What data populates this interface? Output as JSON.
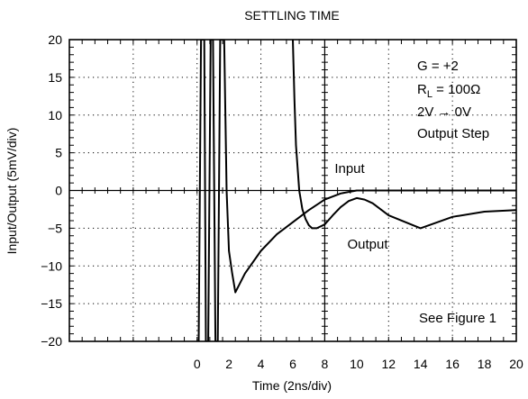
{
  "chart_data": {
    "type": "line",
    "title": "SETTLING TIME",
    "xlabel": "Time (2ns/div)",
    "ylabel": "Input/Output (5mV/div)",
    "xlim": [
      -8,
      20
    ],
    "ylim": [
      -20,
      20
    ],
    "grid": true,
    "x_ticks": [
      {
        "value": 0,
        "label": "0"
      },
      {
        "value": 2,
        "label": "2"
      },
      {
        "value": 4,
        "label": "4"
      },
      {
        "value": 6,
        "label": "6"
      },
      {
        "value": 8,
        "label": "8"
      },
      {
        "value": 10,
        "label": "10"
      },
      {
        "value": 12,
        "label": "12"
      },
      {
        "value": 14,
        "label": "14"
      },
      {
        "value": 16,
        "label": "16"
      },
      {
        "value": 18,
        "label": "18"
      },
      {
        "value": 20,
        "label": "20"
      }
    ],
    "y_ticks": [
      {
        "value": 20,
        "label": "20"
      },
      {
        "value": 15,
        "label": "15"
      },
      {
        "value": 10,
        "label": "10"
      },
      {
        "value": 5,
        "label": "5"
      },
      {
        "value": 0,
        "label": "0"
      },
      {
        "value": -5,
        "label": "−5"
      },
      {
        "value": -10,
        "label": "−10"
      },
      {
        "value": -15,
        "label": "−15"
      },
      {
        "value": -20,
        "label": "−20"
      }
    ],
    "series": [
      {
        "name": "Input",
        "x": [
          6.0,
          6.1,
          6.2,
          6.4,
          6.6,
          6.8,
          7.0,
          7.2,
          7.5,
          8.0,
          8.5,
          9.0,
          9.5,
          10.0,
          10.5,
          11.0,
          12.0,
          14.0,
          16.0,
          18.0,
          20.0
        ],
        "y": [
          20,
          12,
          6,
          0,
          -2.5,
          -3.8,
          -4.6,
          -5.0,
          -5.0,
          -4.5,
          -3.3,
          -2.2,
          -1.4,
          -1.0,
          -1.2,
          -1.7,
          -3.3,
          -5.0,
          -3.5,
          -2.8,
          -2.6
        ]
      },
      {
        "name": "Output",
        "x": [
          0.1,
          0.25,
          0.45,
          0.55,
          0.7,
          0.85,
          1.0,
          1.15,
          1.3,
          1.45,
          1.55,
          1.7,
          1.85,
          2.0,
          2.2,
          2.4,
          3.0,
          4.0,
          5.0,
          6.0,
          7.0,
          8.0,
          9.0,
          10.0,
          11.0,
          12.0,
          14.0,
          16.0,
          18.0,
          20.0
        ],
        "y": [
          -20,
          20,
          20,
          -20,
          -20,
          20,
          20,
          -20,
          -20,
          20,
          20,
          20,
          0,
          -8,
          -11,
          -13.5,
          -11,
          -8,
          -5.8,
          -4.2,
          -2.6,
          -1.2,
          -0.4,
          0,
          0,
          0,
          0,
          0,
          0,
          0
        ]
      }
    ],
    "annotations": [
      {
        "text": "Input",
        "x": 11,
        "y": 3
      },
      {
        "text": "Output",
        "x": 11,
        "y": -7
      }
    ],
    "legend_box": {
      "line1": "G = +2",
      "line2_main": "R",
      "line2_sub": "L",
      "line2_rest": " = 100Ω",
      "line3": "2V → 0V",
      "line4": "Output Step"
    },
    "note": "See Figure 1"
  }
}
